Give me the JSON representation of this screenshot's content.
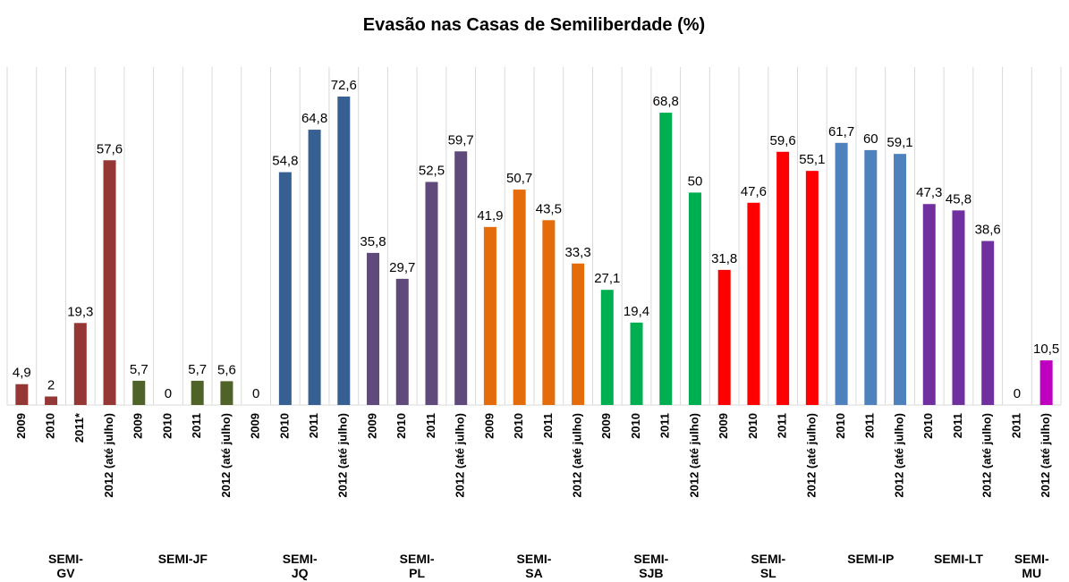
{
  "chart_data": {
    "type": "bar",
    "title": "Evasão nas Casas de Semiliberdade (%)",
    "groups": [
      {
        "name": "SEMI-GV",
        "color": "#953735",
        "categories": [
          "2009",
          "2010",
          "2011*",
          "2012 (até julho)"
        ],
        "values": [
          4.9,
          2,
          19.3,
          57.6
        ],
        "value_labels": [
          "4,9",
          "2",
          "19,3",
          "57,6"
        ]
      },
      {
        "name": "SEMI-JF",
        "color": "#4f6228",
        "categories": [
          "2009",
          "2010",
          "2011",
          "2012 (até julho)"
        ],
        "values": [
          5.7,
          0,
          5.7,
          5.6
        ],
        "value_labels": [
          "5,7",
          "0",
          "5,7",
          "5,6"
        ]
      },
      {
        "name": "SEMI-JQ",
        "color": "#376092",
        "categories": [
          "2009",
          "2010",
          "2011",
          "2012 (até julho)"
        ],
        "values": [
          0,
          54.8,
          64.8,
          72.6
        ],
        "value_labels": [
          "0",
          "54,8",
          "64,8",
          "72,6"
        ]
      },
      {
        "name": "SEMI-PL",
        "color": "#604a7b",
        "categories": [
          "2009",
          "2010",
          "2011",
          "2012 (até julho)"
        ],
        "values": [
          35.8,
          29.7,
          52.5,
          59.7
        ],
        "value_labels": [
          "35,8",
          "29,7",
          "52,5",
          "59,7"
        ]
      },
      {
        "name": "SEMI-SA",
        "color": "#e46c0a",
        "categories": [
          "2009",
          "2010",
          "2011",
          "2012 (até julho)"
        ],
        "values": [
          41.9,
          50.7,
          43.5,
          33.3
        ],
        "value_labels": [
          "41,9",
          "50,7",
          "43,5",
          "33,3"
        ]
      },
      {
        "name": "SEMI-SJB",
        "color": "#00b050",
        "categories": [
          "2009",
          "2010",
          "2011",
          "2012 (até julho)"
        ],
        "values": [
          27.1,
          19.4,
          68.8,
          50
        ],
        "value_labels": [
          "27,1",
          "19,4",
          "68,8",
          "50"
        ]
      },
      {
        "name": "SEMI-SL",
        "color": "#ff0000",
        "categories": [
          "2009",
          "2010",
          "2011",
          "2012 (até julho)"
        ],
        "values": [
          31.8,
          47.6,
          59.6,
          55.1
        ],
        "value_labels": [
          "31,8",
          "47,6",
          "59,6",
          "55,1"
        ]
      },
      {
        "name": "SEMI-IP",
        "color": "#4f81bd",
        "categories": [
          "2010",
          "2011",
          "2012 (até julho)"
        ],
        "values": [
          61.7,
          60,
          59.1
        ],
        "value_labels": [
          "61,7",
          "60",
          "59,1"
        ]
      },
      {
        "name": "SEMI-LT",
        "color": "#7030a0",
        "categories": [
          "2010",
          "2011",
          "2012 (até julho)"
        ],
        "values": [
          47.3,
          45.8,
          38.6
        ],
        "value_labels": [
          "47,3",
          "45,8",
          "38,6"
        ]
      },
      {
        "name": "SEMI-MU",
        "color": "#c000c0",
        "categories": [
          "2011",
          "2012 (até julho)"
        ],
        "values": [
          0,
          10.5
        ],
        "value_labels": [
          "0",
          "10,5"
        ]
      }
    ]
  }
}
